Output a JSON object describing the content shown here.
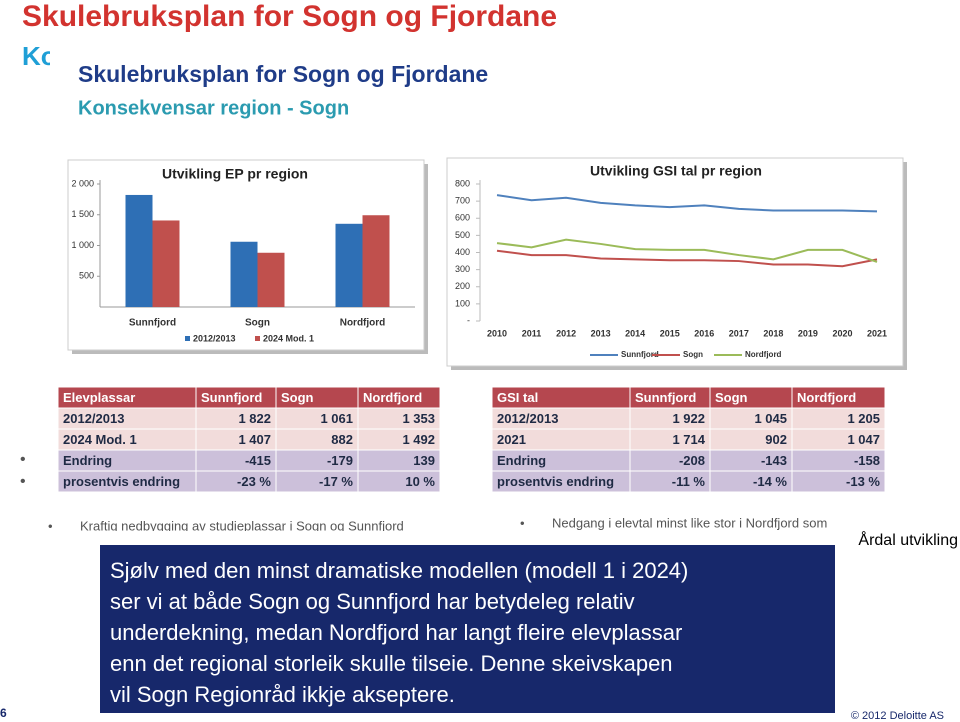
{
  "header": {
    "title": "Skulebruksplan for Sogn og Fjordane",
    "subtitle_fragment": "Ko"
  },
  "panel": {
    "title": "Skulebruksplan for Sogn og Fjordane",
    "subtitle": "Konsekvensar region - Sogn"
  },
  "chart_data": [
    {
      "type": "bar",
      "title": "Utvikling EP pr region",
      "categories": [
        "Sunnfjord",
        "Sogn",
        "Nordfjord"
      ],
      "series": [
        {
          "name": "2012/2013",
          "color": "#2e6fb5",
          "values": [
            1822,
            1061,
            1353
          ]
        },
        {
          "name": "2024 Mod. 1",
          "color": "#c0504d",
          "values": [
            1407,
            882,
            1492
          ]
        }
      ],
      "ylim": [
        0,
        2000
      ],
      "yticks": [
        500,
        {
          "value": 1000,
          "label": "1 000"
        },
        {
          "value": 1500,
          "label": "1 500"
        },
        {
          "value": 2000,
          "label": "2 000"
        }
      ]
    },
    {
      "type": "line",
      "title": "Utvikling GSI tal pr region",
      "x": [
        2010,
        2011,
        2012,
        2013,
        2014,
        2015,
        2016,
        2017,
        2018,
        2019,
        2020,
        2021
      ],
      "xlim": [
        2010,
        2021
      ],
      "series": [
        {
          "name": "Sunnfjord",
          "color": "#4f81bd",
          "values": [
            735,
            705,
            720,
            690,
            675,
            665,
            675,
            655,
            645,
            645,
            645,
            640
          ]
        },
        {
          "name": "Sogn",
          "color": "#c0504d",
          "values": [
            410,
            385,
            385,
            365,
            360,
            355,
            355,
            350,
            330,
            330,
            320,
            360
          ]
        },
        {
          "name": "Nordfjord",
          "color": "#9bbb59",
          "values": [
            455,
            430,
            475,
            450,
            420,
            415,
            415,
            385,
            360,
            415,
            415,
            345
          ]
        }
      ],
      "ylim": [
        0,
        800
      ],
      "yticks": [
        {
          "value": 0,
          "label": "-"
        },
        100,
        200,
        300,
        400,
        500,
        600,
        700,
        800
      ]
    }
  ],
  "tables": [
    {
      "header": [
        "Elevplassar",
        "Sunnfjord",
        "Sogn",
        "Nordfjord"
      ],
      "rows": [
        [
          "2012/2013",
          "1 822",
          "1 061",
          "1 353"
        ],
        [
          "2024 Mod. 1",
          "1 407",
          "882",
          "1 492"
        ],
        [
          "Endring",
          "-415",
          "-179",
          "139"
        ],
        [
          "prosentvis endring",
          "-23 %",
          "-17 %",
          "10 %"
        ]
      ]
    },
    {
      "header": [
        "GSI tal",
        "Sunnfjord",
        "Sogn",
        "Nordfjord"
      ],
      "rows": [
        [
          "2012/2013",
          "1 922",
          "1 045",
          "1 205"
        ],
        [
          "2021",
          "1 714",
          "902",
          "1 047"
        ],
        [
          "Endring",
          "-208",
          "-143",
          "-158"
        ],
        [
          "prosentvis endring",
          "-11 %",
          "-14 %",
          "-13 %"
        ]
      ]
    }
  ],
  "bullets": [
    "Kraftig nedbygging av studieplassar i Sogn og Sunnfjord",
    "Nedgang i elevtal minst like stor i Nordfjord som"
  ],
  "side_note": "Årdal utvikling",
  "callout": [
    "Sjølv med den minst dramatiske modellen (modell 1 i 2024)",
    "ser vi at både Sogn og Sunnfjord har betydeleg relativ",
    "underdekning, medan Nordfjord har langt fleire elevplassar",
    "enn det regional storleik skulle tilseie. Denne skeivskapen",
    "vil Sogn Regionråd ikkje akseptere."
  ],
  "page_number": "6",
  "footer": "© 2012 Deloitte AS"
}
